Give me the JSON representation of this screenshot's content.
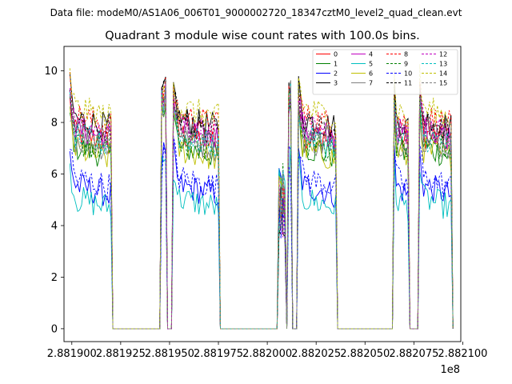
{
  "suptitle": "Data file: modeM0/AS1A06_006T01_9000002720_18347cztM0_level2_quad_clean.evt",
  "chart_data": {
    "type": "line",
    "title": "Quadrant 3 module wise count rates with 100.0s bins.",
    "xlabel": "",
    "ylabel": "",
    "x_offset_label": "1e8",
    "xlim": [
      2.881896,
      2.882099
    ],
    "ylim": [
      -0.5,
      10.95
    ],
    "x_ticks": [
      2.8819,
      2.881925,
      2.88195,
      2.881975,
      2.882,
      2.882025,
      2.88205,
      2.882075,
      2.8821
    ],
    "x_tick_labels": [
      "2.881900",
      "2.881925",
      "2.881950",
      "2.881975",
      "2.882000",
      "2.882025",
      "2.882050",
      "2.882075",
      "2.882100"
    ],
    "y_ticks": [
      0,
      2,
      4,
      6,
      8,
      10
    ],
    "y_tick_labels": [
      "0",
      "2",
      "4",
      "6",
      "8",
      "10"
    ],
    "legend_position": "top-right",
    "segments": [
      {
        "x_start": 2.881899,
        "x_end": 2.88192,
        "shape": "plateau"
      },
      {
        "x_start": 2.881946,
        "x_end": 2.881948,
        "shape": "spike"
      },
      {
        "x_start": 2.881952,
        "x_end": 2.881975,
        "shape": "plateau"
      },
      {
        "x_start": 2.882006,
        "x_end": 2.882009,
        "shape": "bump"
      },
      {
        "x_start": 2.882011,
        "x_end": 2.882012,
        "shape": "spike"
      },
      {
        "x_start": 2.882016,
        "x_end": 2.882035,
        "shape": "plateau"
      },
      {
        "x_start": 2.882065,
        "x_end": 2.882072,
        "shape": "plateau"
      },
      {
        "x_start": 2.882078,
        "x_end": 2.882094,
        "shape": "plateau"
      }
    ],
    "series": [
      {
        "name": "0",
        "color": "#ff0000",
        "style": "solid",
        "level": 7.6,
        "values": "varies by time bin"
      },
      {
        "name": "1",
        "color": "#008000",
        "style": "solid",
        "level": 7.1,
        "values": "varies by time bin"
      },
      {
        "name": "2",
        "color": "#0000ff",
        "style": "solid",
        "level": 5.6,
        "values": "varies by time bin"
      },
      {
        "name": "3",
        "color": "#000000",
        "style": "solid",
        "level": 8.2,
        "values": "varies by time bin"
      },
      {
        "name": "4",
        "color": "#c000c0",
        "style": "solid",
        "level": 7.8,
        "values": "varies by time bin"
      },
      {
        "name": "5",
        "color": "#00bfbf",
        "style": "solid",
        "level": 5.1,
        "values": "varies by time bin"
      },
      {
        "name": "6",
        "color": "#bfbf00",
        "style": "solid",
        "level": 7.0,
        "values": "varies by time bin"
      },
      {
        "name": "7",
        "color": "#808080",
        "style": "solid",
        "level": 7.4,
        "values": "varies by time bin"
      },
      {
        "name": "8",
        "color": "#ff0000",
        "style": "dashed",
        "level": 8.3,
        "values": "varies by time bin"
      },
      {
        "name": "9",
        "color": "#008000",
        "style": "dashed",
        "level": 7.3,
        "values": "varies by time bin"
      },
      {
        "name": "10",
        "color": "#0000ff",
        "style": "dashed",
        "level": 5.9,
        "values": "varies by time bin"
      },
      {
        "name": "11",
        "color": "#000000",
        "style": "dashed",
        "level": 8.0,
        "values": "varies by time bin"
      },
      {
        "name": "12",
        "color": "#c000c0",
        "style": "dashed",
        "level": 7.9,
        "values": "varies by time bin"
      },
      {
        "name": "13",
        "color": "#00bfbf",
        "style": "dashed",
        "level": 7.5,
        "values": "varies by time bin"
      },
      {
        "name": "14",
        "color": "#bfbf00",
        "style": "dashed",
        "level": 8.6,
        "values": "varies by time bin"
      },
      {
        "name": "15",
        "color": "#808080",
        "style": "dashed",
        "level": 7.7,
        "values": "varies by time bin"
      }
    ]
  }
}
